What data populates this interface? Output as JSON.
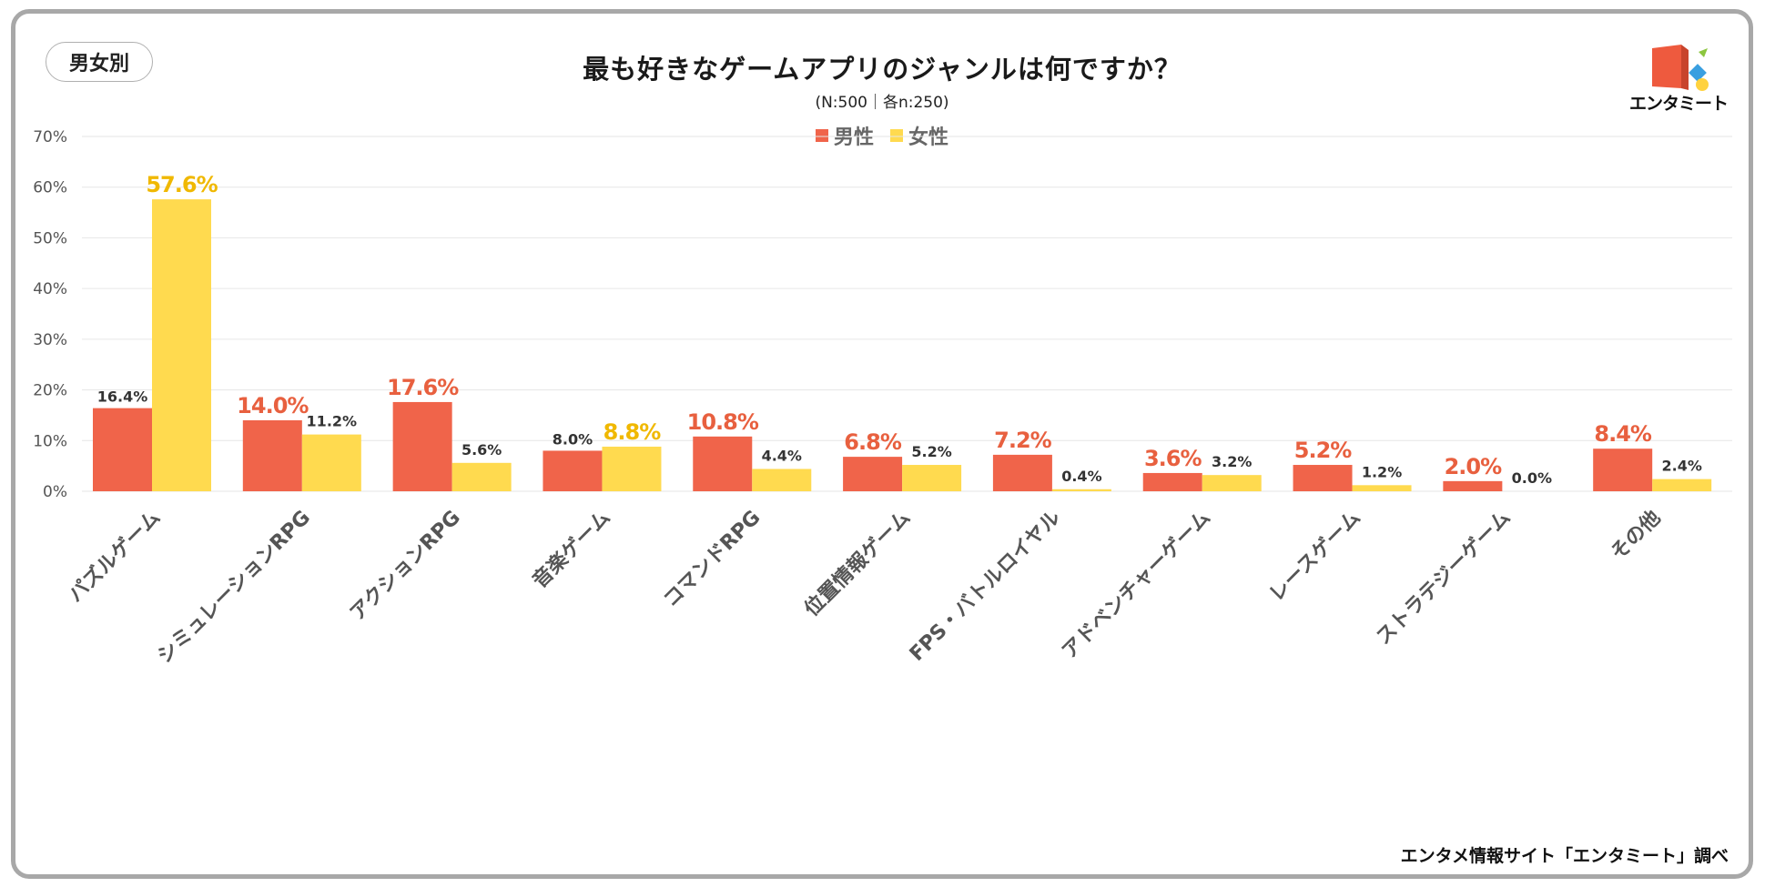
{
  "badge": "男女別",
  "title": "最も好きなゲームアプリのジャンルは何ですか？",
  "subtitle": "(N:500｜各n:250)",
  "logo_text": "エンタミート",
  "source": "エンタメ情報サイト「エンタミート」調べ",
  "colors": {
    "male": "#F0644A",
    "female": "#FFDA4F",
    "male_label": "#E8603F",
    "female_label": "#F0B800",
    "grid": "#e6e6e6",
    "axis_text": "#555555"
  },
  "chart_data": {
    "type": "bar",
    "title": "最も好きなゲームアプリのジャンルは何ですか？",
    "ylim": [
      0,
      70
    ],
    "yticks": [
      0,
      10,
      20,
      30,
      40,
      50,
      60,
      70
    ],
    "ytick_labels": [
      "0%",
      "10%",
      "20%",
      "30%",
      "40%",
      "50%",
      "60%",
      "70%"
    ],
    "categories": [
      "パズルゲーム",
      "シミュレーションRPG",
      "アクションRPG",
      "音楽ゲーム",
      "コマンドRPG",
      "位置情報ゲーム",
      "FPS・バトルロイヤル",
      "アドベンチャーゲーム",
      "レースゲーム",
      "ストラテジーゲーム",
      "その他"
    ],
    "series": [
      {
        "name": "男性",
        "values": [
          16.4,
          14.0,
          17.6,
          8.0,
          10.8,
          6.8,
          7.2,
          3.6,
          5.2,
          2.0,
          8.4
        ],
        "labels": [
          "16.4%",
          "14.0%",
          "17.6%",
          "8.0%",
          "10.8%",
          "6.8%",
          "7.2%",
          "3.6%",
          "5.2%",
          "2.0%",
          "8.4%"
        ]
      },
      {
        "name": "女性",
        "values": [
          57.6,
          11.2,
          5.6,
          8.8,
          4.4,
          5.2,
          0.4,
          3.2,
          1.2,
          0.0,
          2.4
        ],
        "labels": [
          "57.6%",
          "11.2%",
          "5.6%",
          "8.8%",
          "4.4%",
          "5.2%",
          "0.4%",
          "3.2%",
          "1.2%",
          "0.0%",
          "2.4%"
        ]
      }
    ],
    "legend_position": "top-center"
  }
}
